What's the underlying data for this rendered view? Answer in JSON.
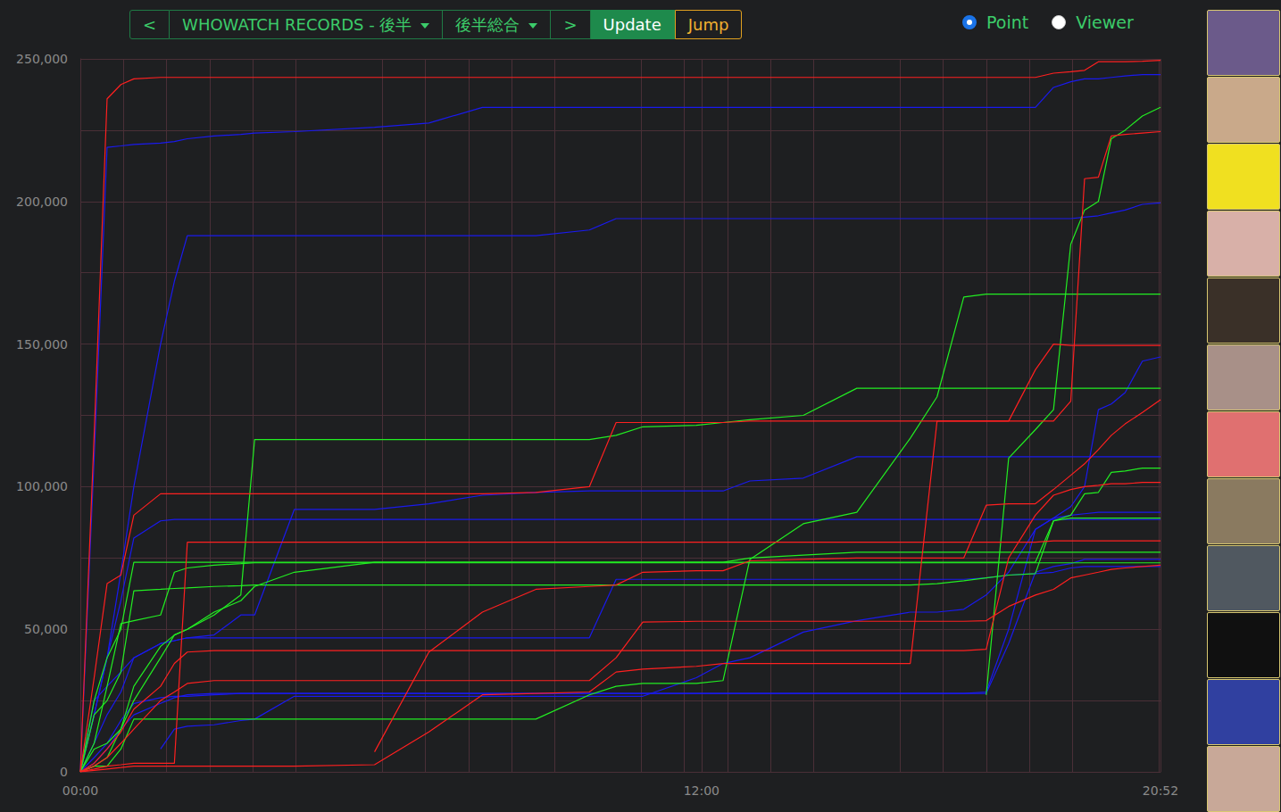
{
  "chart_data": {
    "type": "line",
    "grid": true,
    "x": [
      0,
      16,
      31,
      47,
      62,
      93,
      109,
      124,
      155,
      186,
      202,
      248,
      341,
      404,
      466,
      528,
      590,
      621,
      652,
      714,
      745,
      776,
      838,
      900,
      962,
      993,
      1024,
      1050,
      1076,
      1107,
      1128,
      1148,
      1164,
      1180,
      1195,
      1211,
      1231,
      1252
    ],
    "xlim": [
      0,
      1252
    ],
    "xticks": [
      {
        "value": 0,
        "label": "00:00"
      },
      {
        "value": 720,
        "label": "12:00"
      },
      {
        "value": 1252,
        "label": "20:52"
      }
    ],
    "ylim": [
      0,
      250000
    ],
    "yticks": [
      0,
      {
        "value": 50000,
        "label": "50,000"
      },
      {
        "value": 100000,
        "label": "100,000"
      },
      {
        "value": 150000,
        "label": "150,000"
      },
      {
        "value": 200000,
        "label": "200,000"
      },
      {
        "value": 250000,
        "label": "250,000"
      }
    ],
    "series": [
      {
        "color": "#1a1aee",
        "values": [
          0,
          110000,
          219000,
          219500,
          220000,
          220500,
          221000,
          222000,
          223000,
          223500,
          224000,
          224500,
          226000,
          227500,
          233000,
          233000,
          233000,
          233000,
          233000,
          233000,
          233000,
          233000,
          233000,
          233000,
          233000,
          233000,
          233000,
          233000,
          233000,
          233000,
          240000,
          242000,
          243000,
          243000,
          243500,
          244000,
          244500,
          244500
        ]
      },
      {
        "color": "#1a1aee",
        "values": [
          0,
          20000,
          40000,
          70000,
          100000,
          150000,
          172000,
          188000,
          188000,
          188000,
          188000,
          188000,
          188000,
          188000,
          188000,
          188000,
          190000,
          194000,
          194000,
          194000,
          194000,
          194000,
          194000,
          194000,
          194000,
          194000,
          194000,
          194000,
          194000,
          194000,
          194000,
          194000,
          194500,
          195000,
          196000,
          197000,
          199000,
          199500
        ]
      },
      {
        "color": "#1a1aee",
        "values": [
          0,
          5000,
          10000,
          18000,
          24000,
          26000,
          26500,
          26500,
          27000,
          27500,
          27500,
          27500,
          27500,
          27500,
          27500,
          27500,
          27500,
          27500,
          27500,
          27500,
          27500,
          27500,
          27500,
          27500,
          27500,
          27500,
          27500,
          28000,
          50000,
          85000,
          89000,
          93000,
          100000,
          127000,
          129000,
          133000,
          144000,
          145500
        ]
      },
      {
        "color": "#1a1aee",
        "values": [
          0,
          25000,
          30000,
          35000,
          40000,
          45000,
          46000,
          47000,
          48000,
          55000,
          55000,
          92000,
          92000,
          94000,
          97000,
          98000,
          98500,
          98500,
          98500,
          98500,
          98500,
          102000,
          103000,
          110500,
          110500,
          110500,
          110500,
          110500,
          110500,
          110500,
          110500,
          110500,
          110500,
          110500,
          110500,
          110500,
          110500,
          110500
        ]
      },
      {
        "color": "#1a1aee",
        "values": [
          0,
          20000,
          40000,
          60000,
          82000,
          88000,
          88500,
          88500,
          88500,
          88500,
          88500,
          88500,
          88500,
          88500,
          88500,
          88500,
          88500,
          88500,
          88500,
          88500,
          88500,
          88500,
          88500,
          88500,
          88500,
          88500,
          88500,
          88500,
          88500,
          88500,
          88500,
          88500,
          88500,
          88500,
          88500,
          88500,
          88500,
          88500
        ]
      },
      {
        "color": "#1a1aee",
        "values": [
          0,
          10000,
          20000,
          28000,
          40000,
          45000,
          46000,
          47000,
          47000,
          47000,
          47000,
          47000,
          47000,
          47000,
          47000,
          47000,
          47000,
          67500,
          67500,
          67500,
          67500,
          67500,
          67500,
          67500,
          67500,
          67500,
          67500,
          68000,
          69000,
          69500,
          70000,
          71500,
          72000,
          72000,
          72000,
          72000,
          72000,
          72000
        ]
      },
      {
        "color": "#1a1aee",
        "values": [
          null,
          null,
          null,
          null,
          null,
          8000,
          15000,
          16000,
          16500,
          18000,
          18500,
          26500,
          26500,
          26500,
          26500,
          26500,
          26500,
          26500,
          26500,
          33000,
          38000,
          40000,
          49000,
          53000,
          56000,
          56000,
          57000,
          62000,
          70000,
          85000,
          89000,
          90000,
          90500,
          91000,
          91000,
          91000,
          91000,
          91000
        ]
      },
      {
        "color": "#1a1aee",
        "values": [
          0,
          3000,
          8000,
          15000,
          20000,
          24000,
          26000,
          27000,
          27500,
          27500,
          27500,
          27500,
          27500,
          27500,
          27500,
          27500,
          27500,
          27500,
          27500,
          27500,
          27500,
          27500,
          27500,
          27500,
          27500,
          27500,
          27500,
          27500,
          45000,
          70000,
          72000,
          73000,
          74500,
          74500,
          74500,
          74500,
          74500,
          74500
        ]
      },
      {
        "color": "#22ee22",
        "values": [
          null,
          null,
          null,
          null,
          null,
          null,
          null,
          null,
          null,
          null,
          null,
          null,
          null,
          null,
          null,
          null,
          null,
          null,
          null,
          null,
          null,
          null,
          null,
          null,
          null,
          null,
          null,
          27000,
          110000,
          120000,
          127000,
          185000,
          197000,
          200000,
          222000,
          225000,
          230000,
          233000
        ]
      },
      {
        "color": "#22ee22",
        "values": [
          0,
          2000,
          2000,
          8000,
          18500,
          18500,
          18500,
          18500,
          18500,
          18500,
          18500,
          18500,
          18500,
          18500,
          18500,
          18500,
          27000,
          30000,
          31000,
          31000,
          32000,
          74500,
          87000,
          91000,
          117000,
          131500,
          166500,
          167500,
          167500,
          167500,
          167500,
          167500,
          167500,
          167500,
          167500,
          167500,
          167500,
          167500
        ]
      },
      {
        "color": "#22ee22",
        "values": [
          0,
          8000,
          10000,
          15000,
          25000,
          40000,
          48000,
          50000,
          55000,
          62000,
          116500,
          116500,
          116500,
          116500,
          116500,
          116500,
          116500,
          118000,
          121000,
          121500,
          122500,
          123500,
          125000,
          134500,
          134500,
          134500,
          134500,
          134500,
          134500,
          134500,
          134500,
          134500,
          134500,
          134500,
          134500,
          134500,
          134500,
          134500
        ]
      },
      {
        "color": "#22ee22",
        "values": [
          0,
          25000,
          40000,
          50000,
          73500,
          73500,
          73500,
          73500,
          73500,
          73500,
          73500,
          73500,
          73500,
          73500,
          73500,
          73500,
          73500,
          73500,
          73500,
          73500,
          73500,
          73500,
          73500,
          73500,
          73500,
          73500,
          73500,
          73500,
          73500,
          73500,
          88000,
          90000,
          97500,
          98000,
          105000,
          105500,
          106500,
          106500
        ]
      },
      {
        "color": "#22ee22",
        "values": [
          0,
          20000,
          25000,
          35000,
          63500,
          64000,
          64300,
          64500,
          65000,
          65300,
          65500,
          65500,
          65500,
          65500,
          65500,
          65500,
          65500,
          65500,
          65500,
          65500,
          65500,
          65500,
          65500,
          65500,
          65500,
          66000,
          67000,
          68000,
          69000,
          69500,
          88000,
          89000,
          89000,
          89000,
          89000,
          89000,
          89000,
          89000
        ]
      },
      {
        "color": "#22ee22",
        "values": [
          0,
          10000,
          30000,
          52000,
          53000,
          55000,
          70000,
          71500,
          72500,
          73000,
          73300,
          73300,
          73300,
          73300,
          73300,
          73300,
          73300,
          73300,
          73300,
          73300,
          73300,
          73300,
          73300,
          73300,
          73300,
          73300,
          73300,
          73300,
          73300,
          73300,
          73300,
          73300,
          73300,
          73300,
          73300,
          73300,
          73300,
          73300
        ]
      },
      {
        "color": "#22ee22",
        "values": [
          0,
          2000,
          5000,
          15000,
          30000,
          44000,
          48000,
          50000,
          56000,
          60000,
          65000,
          70000,
          73500,
          73500,
          73500,
          73500,
          73500,
          73500,
          73500,
          73500,
          73500,
          75000,
          76000,
          77000,
          77000,
          77000,
          77000,
          77000,
          77000,
          77000,
          77000,
          77000,
          77000,
          77000,
          77000,
          77000,
          77000,
          77000
        ]
      },
      {
        "color": "#ff2020",
        "values": [
          0,
          118000,
          236000,
          241000,
          243000,
          243500,
          243500,
          243500,
          243500,
          243500,
          243500,
          243500,
          243500,
          243500,
          243500,
          243500,
          243500,
          243500,
          243500,
          243500,
          243500,
          243500,
          243500,
          243500,
          243500,
          243500,
          243500,
          243500,
          243500,
          243500,
          245000,
          245500,
          246000,
          249000,
          249000,
          249000,
          249200,
          249500
        ]
      },
      {
        "color": "#ff2020",
        "values": [
          0,
          33000,
          66000,
          69000,
          90000,
          97500,
          97500,
          97500,
          97500,
          97500,
          97500,
          97500,
          97500,
          97500,
          97500,
          98000,
          100000,
          122500,
          122500,
          122500,
          122500,
          123000,
          123000,
          123000,
          123000,
          123000,
          123000,
          123000,
          123000,
          123000,
          123000,
          130000,
          208000,
          208500,
          223000,
          223500,
          224000,
          224500
        ]
      },
      {
        "color": "#ff2020",
        "values": [
          0,
          500,
          1000,
          1500,
          2000,
          2000,
          2000,
          2000,
          2000,
          2000,
          2000,
          2000,
          2500,
          14000,
          27000,
          27500,
          28000,
          35000,
          36000,
          37000,
          38000,
          38000,
          38000,
          38000,
          38000,
          123000,
          123000,
          123000,
          123000,
          141000,
          150000,
          149500,
          149500,
          149500,
          149500,
          149500,
          149500,
          149500
        ]
      },
      {
        "color": "#ff2020",
        "values": [
          null,
          null,
          null,
          null,
          null,
          null,
          null,
          null,
          null,
          null,
          null,
          null,
          7000,
          42000,
          56000,
          64000,
          65000,
          65500,
          70000,
          70500,
          70500,
          74000,
          74500,
          75000,
          75000,
          75000,
          75000,
          93500,
          94000,
          94000,
          99000,
          104000,
          108000,
          113000,
          118000,
          122000,
          126000,
          130500
        ]
      },
      {
        "color": "#ff2020",
        "values": [
          0,
          3000,
          8000,
          14000,
          22000,
          30000,
          38000,
          42000,
          42500,
          42500,
          42500,
          42500,
          42500,
          42500,
          42500,
          42500,
          42500,
          42500,
          42500,
          42500,
          42500,
          42500,
          42500,
          42500,
          42500,
          42500,
          42500,
          43000,
          75000,
          90000,
          97000,
          99000,
          100000,
          100500,
          101000,
          101000,
          101500,
          101500
        ]
      },
      {
        "color": "#ff2020",
        "values": [
          0,
          1000,
          2000,
          2500,
          3000,
          3000,
          3000,
          80500,
          80500,
          80500,
          80500,
          80500,
          80500,
          80500,
          80500,
          80500,
          80500,
          80500,
          80500,
          80500,
          80500,
          80500,
          80500,
          80500,
          80500,
          80500,
          80500,
          80500,
          80500,
          80500,
          81000,
          81000,
          81000,
          81000,
          81000,
          81000,
          81000,
          81000
        ]
      },
      {
        "color": "#ff2020",
        "values": [
          0,
          2000,
          5000,
          10000,
          15000,
          25000,
          28000,
          31000,
          32000,
          32000,
          32000,
          32000,
          32000,
          32000,
          32000,
          32000,
          32000,
          40000,
          52500,
          52800,
          52800,
          52800,
          52800,
          52800,
          52800,
          52800,
          52800,
          53000,
          58000,
          62000,
          64000,
          68000,
          69000,
          70000,
          71000,
          71500,
          72000,
          72500
        ]
      }
    ]
  },
  "toolbar": {
    "prev": "<",
    "source": "WHOWATCH RECORDS - 後半",
    "period": "後半総合",
    "next": ">",
    "update": "Update",
    "jump": "Jump"
  },
  "modes": {
    "options": [
      "Point",
      "Viewer"
    ],
    "selected": "Point"
  }
}
